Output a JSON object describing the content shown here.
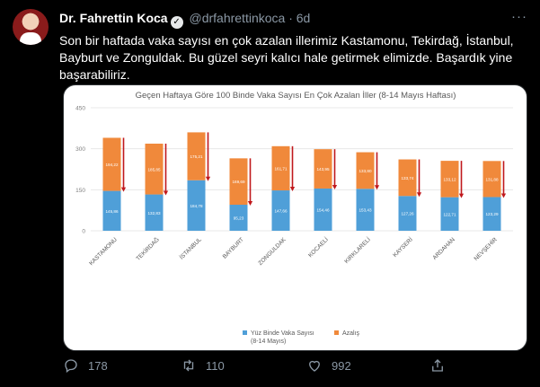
{
  "tweet": {
    "name": "Dr. Fahrettin Koca",
    "handle": "@drfahrettinkoca",
    "dot": "·",
    "time": "6d",
    "more": "···",
    "text": "Son bir haftada vaka sayısı en çok azalan illerimiz Kastamonu, Tekirdağ, İstanbul, Bayburt ve Zonguldak. Bu güzel seyri kalıcı hale getirmek elimizde. Başardık yine başarabiliriz."
  },
  "actions": {
    "reply_count": "178",
    "retweet_count": "110",
    "like_count": "992"
  },
  "chart_data": {
    "type": "bar",
    "stacked": true,
    "title": "Geçen Haftaya Göre 100 Binde Vaka Sayısı En Çok Azalan İller (8-14 Mayıs Haftası)",
    "categories": [
      "KASTAMONU",
      "TEKİRDAĞ",
      "İSTANBUL",
      "BAYBURT",
      "ZONGULDAK",
      "KOCAELİ",
      "KIRKLARELİ",
      "KAYSERİ",
      "ARDAHAN",
      "NEVŞEHİR"
    ],
    "series": [
      {
        "name": "Yüz Binde Vaka Sayısı (8-14 Mayıs)",
        "color": "#4f9fd8",
        "values": [
          145.86,
          132.83,
          184.78,
          95.23,
          147.66,
          154.46,
          153.43,
          127.26,
          122.71,
          123.29
        ],
        "labels": [
          "145,86",
          "132,83",
          "184,78",
          "95,23",
          "147,66",
          "154,46",
          "153,43",
          "127,26",
          "122,71",
          "123,29"
        ]
      },
      {
        "name": "Azalış",
        "color": "#f0893b",
        "values": [
          194.22,
          185.85,
          175.21,
          169.69,
          161.71,
          143.95,
          133.8,
          133.74,
          133.12,
          131.88
        ],
        "labels": [
          "194,22",
          "185,85",
          "175,21",
          "169,69",
          "161,71",
          "143,95",
          "133,80",
          "133,74",
          "133,12",
          "131,88"
        ]
      }
    ],
    "ylim": [
      0,
      450
    ],
    "yticks": [
      "0",
      "150",
      "300",
      "450"
    ],
    "ytick_values": [
      0,
      150,
      300,
      450
    ],
    "arrow_color": "#c0181c",
    "grid": true,
    "legend_position": "bottom"
  }
}
